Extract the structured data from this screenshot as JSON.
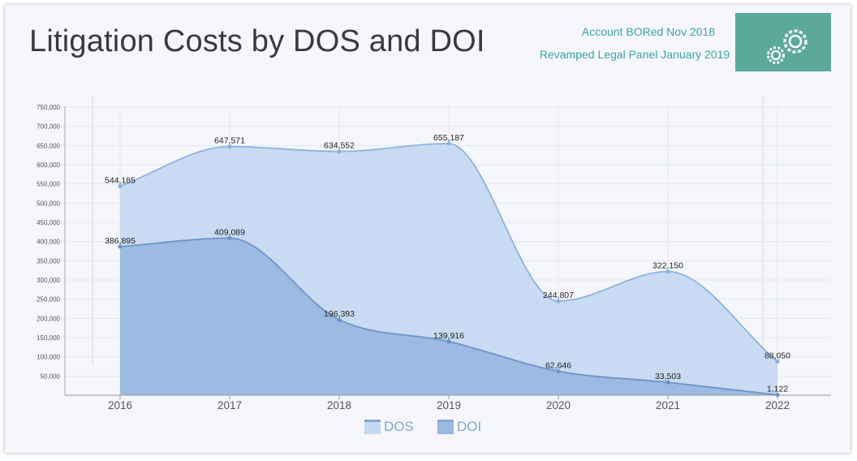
{
  "header": {
    "title": "Litigation Costs by DOS and DOI",
    "note_account": "Account BORed Nov 2018",
    "note_panel": "Revamped Legal Panel January 2019",
    "settings_icon": "gears-icon"
  },
  "colors": {
    "background": "#f6f7fd",
    "dos_fill": "#c5d9f1",
    "dos_line": "#8cb2e0",
    "doi_fill": "#9ab8e0",
    "doi_line": "#6f93c8",
    "accent": "#5ba99a",
    "note_text": "#3aa3a0"
  },
  "legend": {
    "dos": "DOS",
    "doi": "DOI"
  },
  "chart_data": {
    "type": "area",
    "title": "Litigation Costs by DOS and DOI",
    "categories": [
      "2016",
      "2017",
      "2018",
      "2019",
      "2020",
      "2021",
      "2022"
    ],
    "series": [
      {
        "name": "DOS",
        "values": [
          544185,
          647571,
          634552,
          655187,
          244807,
          322150,
          88050
        ]
      },
      {
        "name": "DOI",
        "values": [
          386895,
          409089,
          196393,
          139916,
          62646,
          33503,
          1122
        ]
      }
    ],
    "value_labels": {
      "DOS": [
        "544,185",
        "647,571",
        "634,552",
        "655,187",
        "244,807",
        "322,150",
        "88,050"
      ],
      "DOI": [
        "386,895",
        "409,089",
        "196,393",
        "139,916",
        "62,646",
        "33,503",
        "1,122"
      ]
    },
    "y_ticks": [
      50000,
      100000,
      150000,
      200000,
      250000,
      300000,
      350000,
      400000,
      450000,
      500000,
      550000,
      600000,
      650000,
      700000,
      750000
    ],
    "y_tick_labels": [
      "50,000",
      "100,000",
      "150,000",
      "200,000",
      "250,000",
      "300,000",
      "350,000",
      "400,000",
      "450,000",
      "500,000",
      "550,000",
      "600,000",
      "650,000",
      "700,000",
      "750,000"
    ],
    "ylim": [
      0,
      750000
    ],
    "xlabel": "",
    "ylabel": "",
    "grid": true,
    "legend_position": "bottom-center"
  }
}
